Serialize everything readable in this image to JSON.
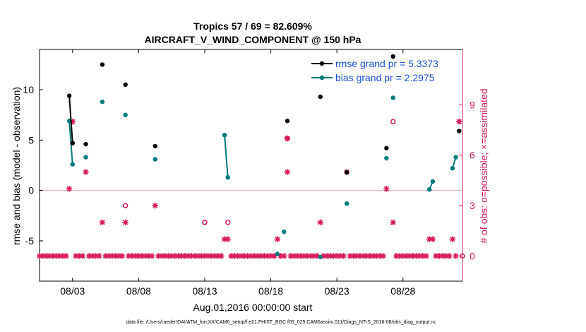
{
  "chart_data": {
    "type": "scatter",
    "title": "Tropics 57 / 69 = 82.609%",
    "subtitle": "AIRCRAFT_V_WIND_COMPONENT @ 150 hPa",
    "xlabel": "Aug.01,2016 00:00:00 start",
    "ylabel": "rmse and bias (model - observation)",
    "y2label": "# of obs: o=possible; ×=assimilated",
    "footer": "data file: /Users/raeder/DAI/ATM_forcXX/CAM6_setup/f.e21.FHIST_BGC.f09_025.CAM6assim.011/Diags_NTrS_2016-08/obs_diag_output.nc",
    "xlim": [
      0.5,
      32.5
    ],
    "ylim": [
      -9,
      14
    ],
    "y2lim": [
      -1.5,
      12.3
    ],
    "grid": false,
    "legend_position": "top-right",
    "x_ticks": [
      3,
      8,
      13,
      18,
      23,
      28
    ],
    "x_tick_labels": [
      "08/03",
      "08/08",
      "08/13",
      "08/18",
      "08/23",
      "08/28"
    ],
    "y_ticks": [
      -5,
      0,
      5,
      10
    ],
    "y_tick_labels": [
      "-5",
      "0",
      "5",
      "10"
    ],
    "y2_ticks": [
      0,
      3,
      6,
      9
    ],
    "y2_tick_labels": [
      "0",
      "3",
      "6",
      "9"
    ],
    "colors": {
      "rmse": "#000000",
      "bias": "#007a78",
      "obs": "#d81b5a",
      "zero_line": "#d9bfc6"
    },
    "series": [
      {
        "name": "rmse grand pr = 5.3373",
        "points": [
          [
            2.75,
            9.4
          ],
          [
            3.0,
            4.7
          ],
          [
            4.0,
            4.6
          ],
          [
            5.25,
            12.5
          ],
          [
            7.0,
            10.5
          ],
          [
            9.25,
            4.4
          ],
          [
            19.25,
            6.9
          ],
          [
            21.75,
            9.3
          ],
          [
            23.75,
            1.8
          ],
          [
            26.75,
            4.2
          ],
          [
            27.25,
            13.3
          ],
          [
            32.25,
            5.9
          ]
        ],
        "segments": [
          [
            [
              2.75,
              9.4
            ],
            [
              3.0,
              4.7
            ]
          ]
        ]
      },
      {
        "name": "bias grand pr = 2.2975",
        "points": [
          [
            2.75,
            6.9
          ],
          [
            3.0,
            2.6
          ],
          [
            4.0,
            3.3
          ],
          [
            5.25,
            8.8
          ],
          [
            7.0,
            7.5
          ],
          [
            9.25,
            3.1
          ],
          [
            14.5,
            5.5
          ],
          [
            14.75,
            1.3
          ],
          [
            18.5,
            -6.3
          ],
          [
            19.0,
            -4.1
          ],
          [
            21.75,
            -6.6
          ],
          [
            23.75,
            -1.3
          ],
          [
            26.75,
            3.2
          ],
          [
            27.25,
            9.2
          ],
          [
            30.0,
            0.1
          ],
          [
            30.25,
            0.9
          ],
          [
            31.75,
            2.2
          ],
          [
            32.0,
            3.3
          ]
        ],
        "segments": [
          [
            [
              2.75,
              6.9
            ],
            [
              3.0,
              2.6
            ]
          ],
          [
            [
              14.5,
              5.5
            ],
            [
              14.75,
              1.3
            ]
          ],
          [
            [
              30.0,
              0.1
            ],
            [
              30.25,
              0.9
            ]
          ],
          [
            [
              31.75,
              2.2
            ],
            [
              32.0,
              3.3
            ]
          ]
        ]
      },
      {
        "name": "obs possible",
        "points": [
          [
            7.0,
            3
          ],
          [
            13.0,
            2
          ],
          [
            14.75,
            2
          ],
          [
            19.25,
            7
          ],
          [
            27.25,
            8
          ]
        ]
      },
      {
        "name": "obs assimilated",
        "points": [
          [
            2.75,
            4
          ],
          [
            3.0,
            8
          ],
          [
            4.0,
            5
          ],
          [
            5.25,
            2
          ],
          [
            7.0,
            2
          ],
          [
            9.25,
            3
          ],
          [
            14.5,
            1
          ],
          [
            14.75,
            1
          ],
          [
            18.5,
            1
          ],
          [
            19.25,
            7
          ],
          [
            19.25,
            5
          ],
          [
            21.75,
            2
          ],
          [
            23.75,
            5
          ],
          [
            26.75,
            4
          ],
          [
            27.25,
            2
          ],
          [
            30.0,
            1
          ],
          [
            30.25,
            1
          ],
          [
            31.75,
            1
          ],
          [
            32.25,
            8
          ]
        ]
      }
    ],
    "assimilated_zero_ranges": [
      [
        0.5,
        2.5
      ],
      [
        3.25,
        3.75
      ],
      [
        4.25,
        5.0
      ],
      [
        5.5,
        6.75
      ],
      [
        7.25,
        9.0
      ],
      [
        9.5,
        14.25
      ],
      [
        15.0,
        18.25
      ],
      [
        18.75,
        19.0
      ],
      [
        19.5,
        21.5
      ],
      [
        22.0,
        23.5
      ],
      [
        24.0,
        26.5
      ],
      [
        27.5,
        29.75
      ],
      [
        30.5,
        31.5
      ],
      [
        32.0,
        32.0
      ]
    ],
    "possible_zero_points": [
      32.5
    ]
  }
}
